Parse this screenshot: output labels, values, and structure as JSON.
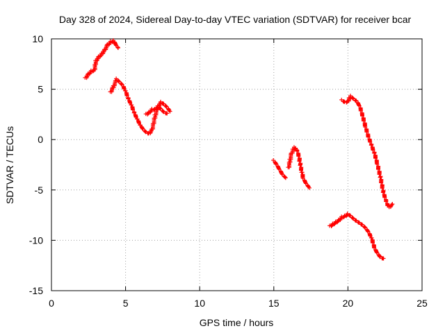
{
  "chart_data": {
    "type": "scatter",
    "title": "Day 328 of 2024, Sidereal Day-to-day VTEC variation (SDTVAR) for receiver bcar",
    "xlabel": "GPS time / hours",
    "ylabel": "SDTVAR / TECUs",
    "xlim": [
      0,
      25
    ],
    "ylim": [
      -15,
      10
    ],
    "xticks": [
      0,
      5,
      10,
      15,
      20,
      25
    ],
    "yticks": [
      -15,
      -10,
      -5,
      0,
      5,
      10
    ],
    "grid": true,
    "marker": "plus",
    "color": "#ff0000",
    "series": [
      {
        "name": "segment-1",
        "x": [
          2.3,
          2.5,
          2.7,
          2.9,
          3.0,
          3.2,
          3.4,
          3.6,
          3.8,
          4.0,
          4.2,
          4.4,
          4.5
        ],
        "y": [
          6.1,
          6.5,
          6.8,
          6.9,
          7.8,
          8.2,
          8.5,
          8.9,
          9.4,
          9.7,
          9.8,
          9.3,
          9.1
        ]
      },
      {
        "name": "segment-2",
        "x": [
          4.0,
          4.2,
          4.4,
          4.6,
          4.8,
          5.0,
          5.2,
          5.4,
          5.6,
          5.8,
          6.0,
          6.2,
          6.4,
          6.6,
          6.8,
          7.0,
          7.2,
          7.4,
          7.6,
          7.8,
          8.0
        ],
        "y": [
          4.7,
          5.3,
          6.0,
          5.7,
          5.4,
          4.8,
          4.0,
          3.4,
          2.6,
          2.0,
          1.4,
          1.0,
          0.7,
          0.6,
          1.0,
          2.4,
          3.3,
          3.7,
          3.5,
          3.2,
          2.8
        ]
      },
      {
        "name": "segment-2b",
        "x": [
          6.4,
          6.6,
          6.8,
          7.0,
          7.2,
          7.4,
          7.6,
          7.8
        ],
        "y": [
          2.5,
          2.7,
          3.0,
          3.0,
          3.3,
          3.0,
          2.7,
          2.6
        ]
      },
      {
        "name": "segment-3",
        "x": [
          15.0,
          15.2,
          15.4,
          15.6,
          15.8
        ],
        "y": [
          -2.1,
          -2.5,
          -3.0,
          -3.5,
          -3.8
        ]
      },
      {
        "name": "segment-4",
        "x": [
          16.0,
          16.1,
          16.2,
          16.3,
          16.4,
          16.5,
          16.6,
          16.7,
          16.8,
          16.9,
          17.0,
          17.2,
          17.4
        ],
        "y": [
          -2.8,
          -2.0,
          -1.4,
          -1.0,
          -0.8,
          -0.9,
          -1.2,
          -1.7,
          -2.6,
          -3.3,
          -3.9,
          -4.4,
          -4.8
        ]
      },
      {
        "name": "segment-5",
        "x": [
          19.6,
          19.8,
          20.0,
          20.1,
          20.2,
          20.4,
          20.6,
          20.8,
          21.0,
          21.2,
          21.4,
          21.6,
          21.8,
          22.0,
          22.2,
          22.4,
          22.6,
          22.7,
          22.8,
          23.0
        ],
        "y": [
          3.9,
          3.7,
          3.8,
          4.1,
          4.3,
          4.0,
          3.8,
          3.3,
          2.3,
          1.2,
          0.2,
          -0.6,
          -1.4,
          -2.5,
          -3.8,
          -5.3,
          -6.2,
          -6.6,
          -6.7,
          -6.4
        ]
      },
      {
        "name": "segment-6",
        "x": [
          18.8,
          19.0,
          19.2,
          19.4,
          19.6,
          19.8,
          20.0,
          20.2,
          20.4,
          20.6,
          20.8,
          21.0,
          21.2,
          21.4,
          21.6,
          21.8,
          22.0,
          22.2,
          22.4
        ],
        "y": [
          -8.6,
          -8.4,
          -8.2,
          -8.0,
          -7.7,
          -7.6,
          -7.4,
          -7.6,
          -7.9,
          -8.1,
          -8.3,
          -8.5,
          -8.8,
          -9.2,
          -9.8,
          -10.8,
          -11.3,
          -11.7,
          -11.8
        ]
      }
    ]
  }
}
